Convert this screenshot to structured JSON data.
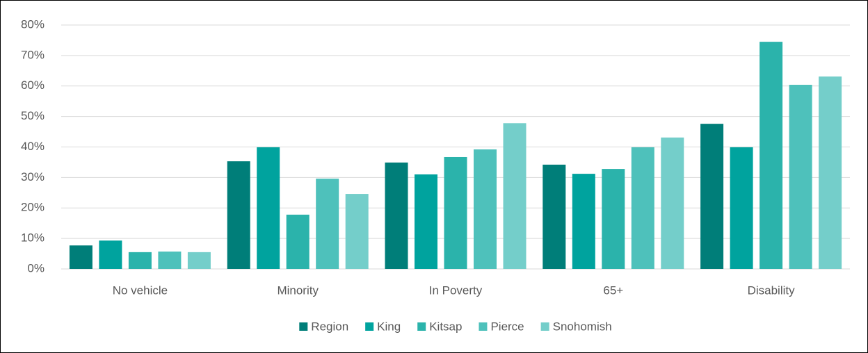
{
  "chart_data": {
    "type": "bar",
    "categories": [
      "No vehicle",
      "Minority",
      "In Poverty",
      "65+",
      "Disability"
    ],
    "series": [
      {
        "name": "Region",
        "color": "#007e79",
        "values": [
          7.7,
          35.3,
          34.9,
          34.2,
          47.6
        ]
      },
      {
        "name": "King",
        "color": "#00a39e",
        "values": [
          9.3,
          39.9,
          31.0,
          31.2,
          39.9
        ]
      },
      {
        "name": "Kitsap",
        "color": "#2bb3ab",
        "values": [
          5.5,
          17.8,
          36.7,
          32.8,
          74.5
        ]
      },
      {
        "name": "Pierce",
        "color": "#4ec1bb",
        "values": [
          5.7,
          29.6,
          39.2,
          39.9,
          60.4
        ]
      },
      {
        "name": "Snohomish",
        "color": "#74ceca",
        "values": [
          5.5,
          24.6,
          47.8,
          43.1,
          63.1
        ]
      }
    ],
    "ylim": [
      0,
      80
    ],
    "yticks": [
      {
        "value": 0,
        "label": "0%"
      },
      {
        "value": 10,
        "label": "10%"
      },
      {
        "value": 20,
        "label": "20%"
      },
      {
        "value": 30,
        "label": "30%"
      },
      {
        "value": 40,
        "label": "40%"
      },
      {
        "value": 50,
        "label": "50%"
      },
      {
        "value": 60,
        "label": "60%"
      },
      {
        "value": 70,
        "label": "70%"
      },
      {
        "value": 80,
        "label": "80%"
      }
    ],
    "grid": true,
    "legend": "bottom"
  }
}
